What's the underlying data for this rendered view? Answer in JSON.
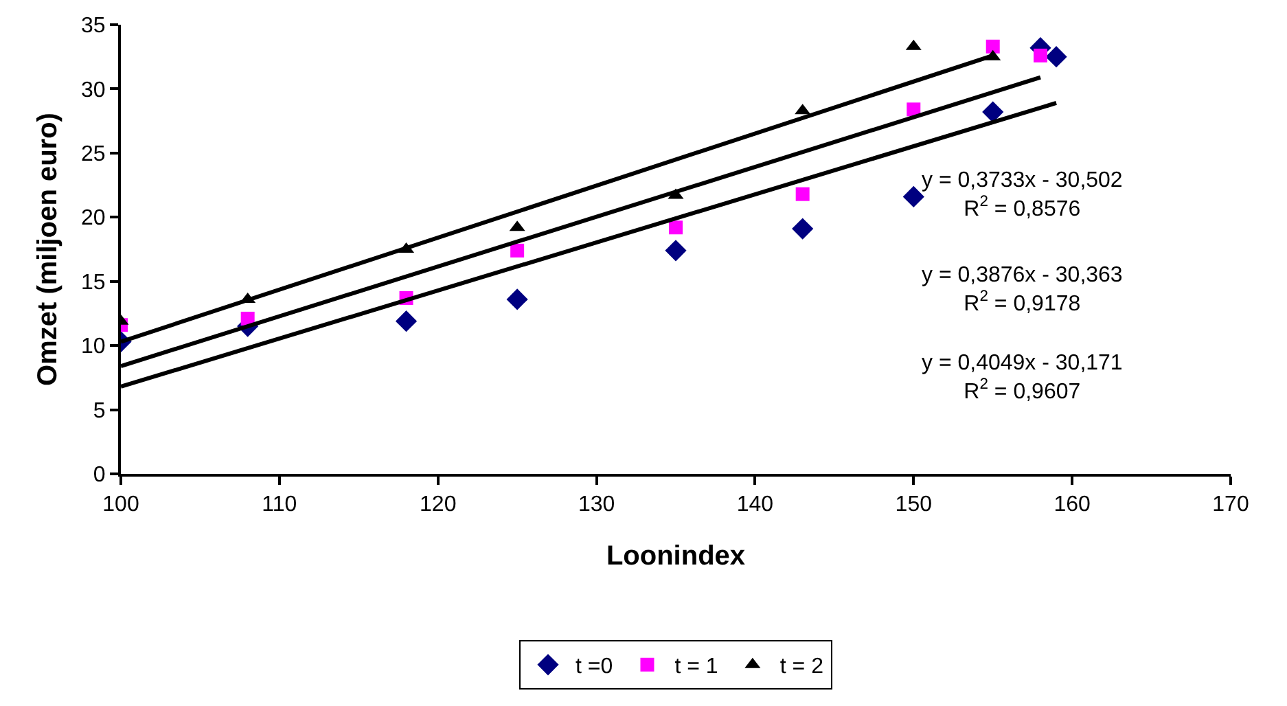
{
  "chart_data": {
    "type": "scatter",
    "xlabel": "Loonindex",
    "ylabel": "Omzet (miljoen euro)",
    "xlim": [
      100,
      170
    ],
    "xticks": [
      100,
      110,
      120,
      130,
      140,
      150,
      160,
      170
    ],
    "ylim": [
      0,
      35
    ],
    "yticks": [
      0,
      5,
      10,
      15,
      20,
      25,
      30,
      35
    ],
    "grid": false,
    "legend": "bottom",
    "series": [
      {
        "name": "t =0",
        "color": "#000080",
        "marker": "diamond",
        "x": [
          100,
          108,
          118,
          125,
          135,
          143,
          150,
          155,
          158,
          159
        ],
        "values": [
          10.3,
          11.5,
          11.9,
          13.6,
          17.4,
          19.1,
          21.6,
          28.2,
          33.2,
          32.5
        ]
      },
      {
        "name": "t = 1",
        "color": "#ff00ff",
        "marker": "square",
        "x": [
          100,
          108,
          118,
          125,
          135,
          143,
          150,
          155,
          158
        ],
        "values": [
          11.6,
          12.1,
          13.7,
          17.4,
          19.2,
          21.8,
          28.4,
          33.3,
          32.6
        ]
      },
      {
        "name": "t = 2",
        "color": "#000000",
        "marker": "triangle",
        "x": [
          100,
          108,
          118,
          125,
          135,
          143,
          150,
          155
        ],
        "values": [
          11.9,
          13.6,
          17.5,
          19.2,
          21.7,
          28.3,
          33.3,
          32.5
        ]
      },
      {
        "type": "line",
        "color": "#000000",
        "line_style": "solid",
        "x": [
          100,
          159
        ],
        "values": [
          6.8,
          28.9
        ]
      },
      {
        "type": "line",
        "color": "#000000",
        "line_style": "solid",
        "x": [
          100,
          158
        ],
        "values": [
          8.4,
          30.9
        ]
      },
      {
        "type": "line",
        "color": "#000000",
        "line_style": "solid",
        "x": [
          100,
          155
        ],
        "values": [
          10.3,
          32.6
        ]
      }
    ],
    "annotations": [
      "y = 0,3733x - 30,502\nR$^{2}$ = 0,8576",
      "y = 0,3876x - 30,363\nR$^{2}$ = 0,9178",
      "y = 0,4049x - 30,171\nR$^{2}$ = 0,9607"
    ]
  }
}
